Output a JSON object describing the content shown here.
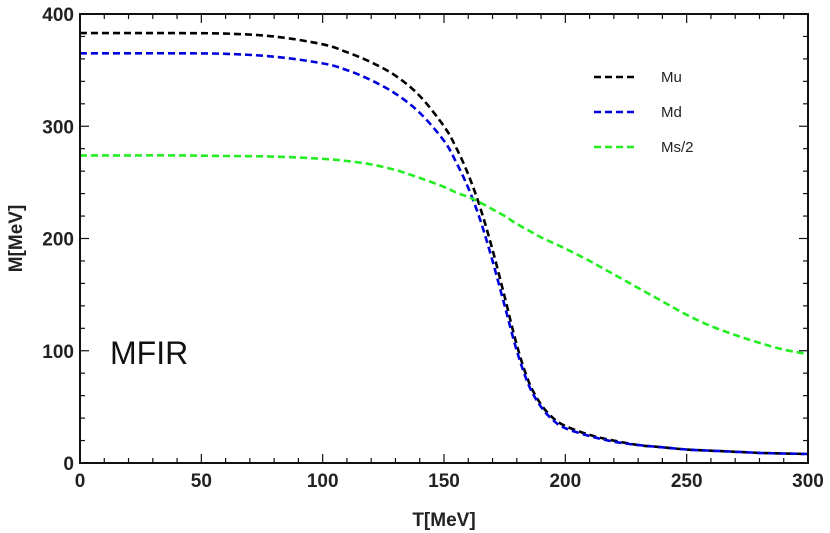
{
  "chart_data": {
    "type": "line",
    "title": "",
    "xlabel": "T[MeV]",
    "ylabel": "M[MeV]",
    "xlim": [
      0,
      300
    ],
    "ylim": [
      0,
      400
    ],
    "xticks": [
      0,
      50,
      100,
      150,
      200,
      250,
      300
    ],
    "yticks": [
      0,
      100,
      200,
      300,
      400
    ],
    "grid": false,
    "legend_position": "top-right",
    "annotation": "MFIR",
    "x": [
      0,
      20,
      40,
      60,
      80,
      100,
      110,
      120,
      130,
      140,
      150,
      155,
      160,
      165,
      170,
      175,
      180,
      185,
      190,
      195,
      200,
      210,
      220,
      230,
      240,
      250,
      260,
      270,
      280,
      290,
      300
    ],
    "series": [
      {
        "name": "Mu",
        "color": "#000000",
        "values": [
          383,
          383,
          383,
          382.5,
          380,
          373,
          366,
          357,
          345,
          327,
          300,
          281,
          257,
          227,
          190,
          148,
          105,
          72,
          52,
          40,
          33,
          25,
          20,
          16,
          14,
          12,
          11,
          10,
          9,
          8.5,
          8
        ]
      },
      {
        "name": "Md",
        "color": "#0000dd",
        "values": [
          365,
          365,
          365,
          364.5,
          362,
          356,
          350,
          341,
          329,
          312,
          287,
          268,
          245,
          216,
          180,
          140,
          100,
          69,
          50,
          38,
          31,
          24,
          19,
          16,
          14,
          12,
          11,
          10,
          9,
          8.5,
          8
        ]
      },
      {
        "name": "Ms/2",
        "color": "#22ee22",
        "values": [
          274,
          274,
          274,
          273.5,
          273,
          271,
          269,
          266,
          261,
          254,
          246,
          241,
          237,
          232,
          226,
          220,
          213,
          207,
          201,
          196,
          191,
          180,
          168,
          156,
          144,
          132,
          122,
          114,
          107,
          101,
          97
        ]
      }
    ]
  }
}
